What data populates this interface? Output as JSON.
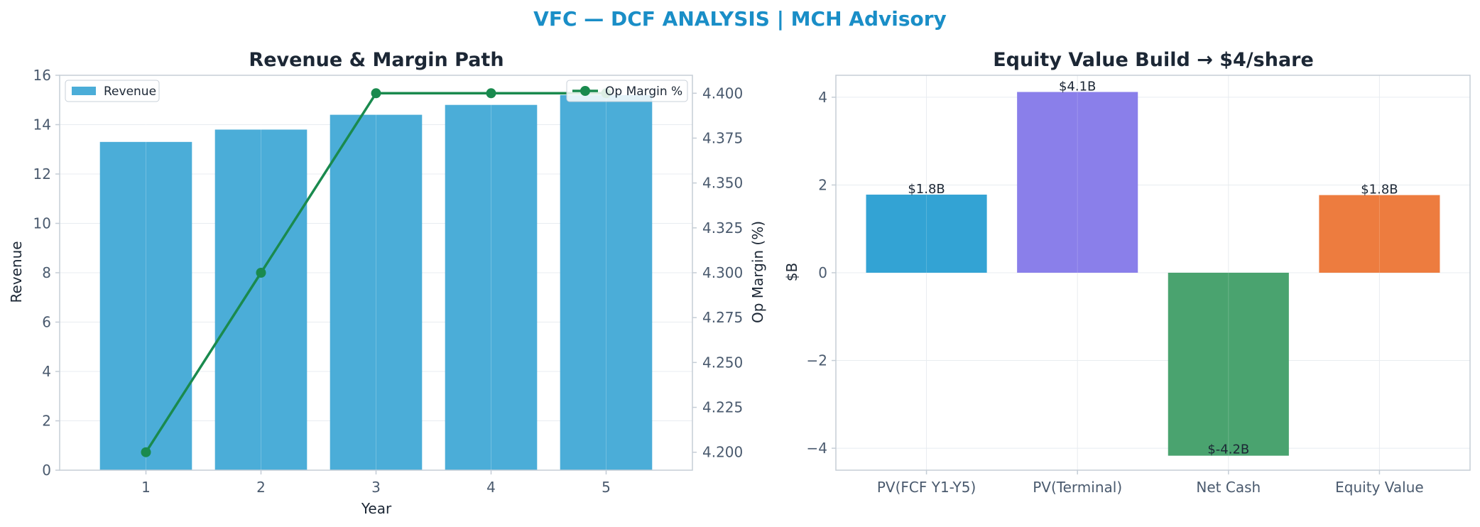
{
  "title": "VFC — DCF ANALYSIS | MCH Advisory",
  "colors": {
    "title": "#1a8ec7",
    "revenue_bar": "#4badd8",
    "margin_line": "#1a8a4e",
    "grid": "#e8ecf0",
    "axis": "#c5cdd6"
  },
  "chart_data": [
    {
      "type": "bar",
      "title": "Revenue & Margin Path",
      "xlabel": "Year",
      "ylabel": "Revenue",
      "y2label": "Op Margin (%)",
      "categories": [
        "1",
        "2",
        "3",
        "4",
        "5"
      ],
      "ylim": [
        0,
        16
      ],
      "yticks": [
        "0",
        "2",
        "4",
        "6",
        "8",
        "10",
        "12",
        "14",
        "16"
      ],
      "y2lim": [
        4.19,
        4.41
      ],
      "y2ticks": [
        "4.200",
        "4.225",
        "4.250",
        "4.275",
        "4.300",
        "4.325",
        "4.350",
        "4.375",
        "4.400"
      ],
      "grid": true,
      "series": [
        {
          "name": "Revenue",
          "type": "bar",
          "axis": "left",
          "values": [
            13.3,
            13.8,
            14.4,
            14.8,
            15.2
          ]
        },
        {
          "name": "Op Margin %",
          "type": "line",
          "axis": "right",
          "values": [
            4.2,
            4.3,
            4.4,
            4.4,
            4.4
          ]
        }
      ],
      "legend": [
        {
          "name": "Revenue",
          "placement": "top-left"
        },
        {
          "name": "Op Margin %",
          "placement": "top-right"
        }
      ]
    },
    {
      "type": "bar",
      "title": "Equity Value Build → $4/share",
      "xlabel": "",
      "ylabel": "$B",
      "categories": [
        "PV(FCF Y1-Y5)",
        "PV(Terminal)",
        "Net Cash",
        "Equity Value"
      ],
      "values": [
        1.78,
        4.12,
        -4.17,
        1.77
      ],
      "labels": [
        "$1.8B",
        "$4.1B",
        "$-4.2B",
        "$1.8B"
      ],
      "colors": [
        "#33a3d4",
        "#8a7fea",
        "#4aa36f",
        "#ed7c3f"
      ],
      "ylim": [
        -4.5,
        4.5
      ],
      "yticks": [
        "−4",
        "−2",
        "0",
        "2",
        "4"
      ],
      "grid": true
    }
  ]
}
